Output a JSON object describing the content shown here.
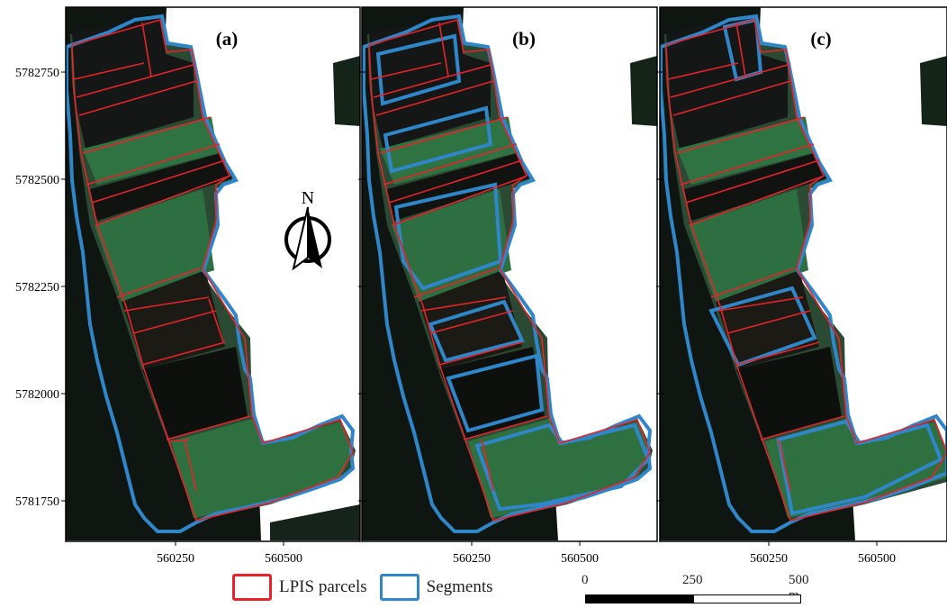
{
  "panels": [
    {
      "label": "(a)",
      "description_visible": false
    },
    {
      "label": "(b)"
    },
    {
      "label": "(c)"
    }
  ],
  "y_ticks": [
    "5782750",
    "5782500",
    "5782250",
    "5782000",
    "5781750"
  ],
  "x_ticks": [
    "560250",
    "560500"
  ],
  "north_arrow": {
    "label": "N"
  },
  "legend": {
    "items": [
      {
        "label": "LPIS parcels",
        "color": "#e5242a"
      },
      {
        "label": "Segments",
        "color": "#2f86c8"
      }
    ]
  },
  "scalebar": {
    "labels": [
      "0",
      "250",
      "500 m"
    ]
  },
  "colors": {
    "parcel_red": "#e5242a",
    "segment_blue": "#2f86c8",
    "field_green": "#2f6b40",
    "dark_field": "#121412"
  }
}
